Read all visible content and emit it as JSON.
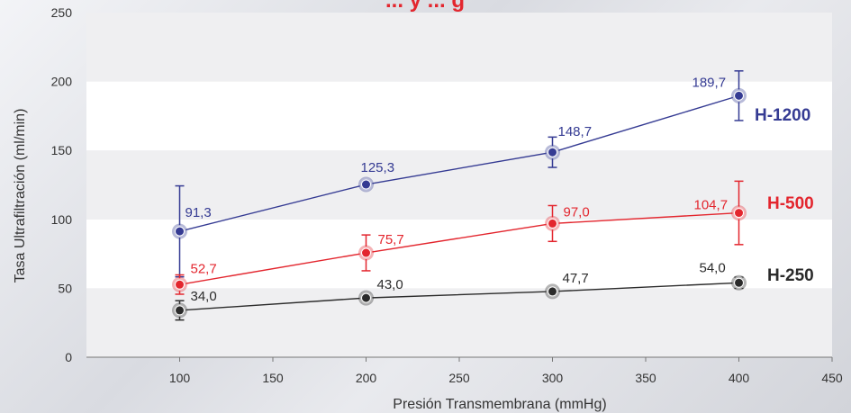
{
  "chart_data": {
    "type": "line",
    "title": "... y  ... g",
    "xlabel": "Presión Transmembrana (mmHg)",
    "ylabel": "Tasa Ultrafiltración (ml/min)",
    "xlim": [
      50,
      450
    ],
    "ylim": [
      0,
      250
    ],
    "xticks": [
      100,
      150,
      200,
      250,
      300,
      350,
      400,
      450
    ],
    "yticks": [
      0,
      50,
      100,
      150,
      200,
      250
    ],
    "xtick_labels": [
      "100",
      "150",
      "200",
      "250",
      "300",
      "350",
      "400",
      "450"
    ],
    "ytick_labels": [
      "0",
      "50",
      "100",
      "150",
      "200",
      "250"
    ],
    "grid": "alternating horizontal bands",
    "legend": "series names at right end of each line",
    "series": [
      {
        "name": "H-1200",
        "color": "#353b93",
        "x": [
          100,
          200,
          300,
          400
        ],
        "y": [
          91.3,
          125.3,
          148.7,
          189.7
        ],
        "labels": [
          "91,3",
          "125,3",
          "148,7",
          "189,7"
        ],
        "err": [
          33,
          2,
          11,
          18
        ]
      },
      {
        "name": "H-500",
        "color": "#e3262e",
        "x": [
          100,
          200,
          300,
          400
        ],
        "y": [
          52.7,
          75.7,
          97.0,
          104.7
        ],
        "labels": [
          "52,7",
          "75,7",
          "97,0",
          "104,7"
        ],
        "err": [
          7,
          13,
          13,
          23
        ]
      },
      {
        "name": "H-250",
        "color": "#2b2b2b",
        "x": [
          100,
          200,
          300,
          400
        ],
        "y": [
          34.0,
          43.0,
          47.7,
          54.0
        ],
        "labels": [
          "34,0",
          "43,0",
          "47,7",
          "54,0"
        ],
        "err": [
          7,
          3,
          2,
          4
        ]
      }
    ]
  }
}
